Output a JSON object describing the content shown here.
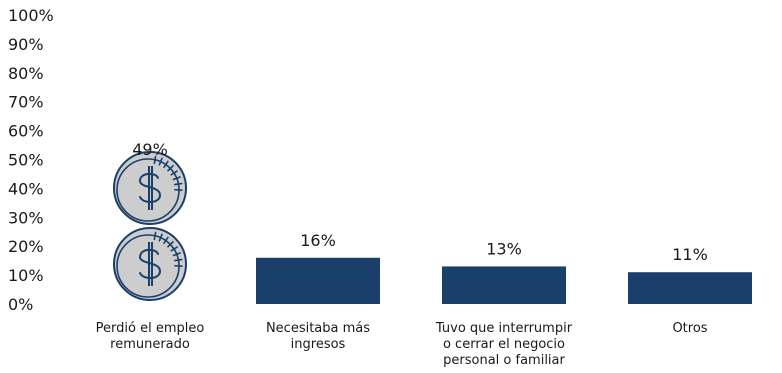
{
  "chart_data": {
    "type": "bar",
    "categories": [
      [
        "Perdió el empleo",
        "remunerado"
      ],
      [
        "Necesitaba más",
        "ingresos"
      ],
      [
        "Tuvo que interrumpir",
        "o cerrar el negocio",
        "personal o familiar"
      ],
      [
        "Otros"
      ]
    ],
    "values": [
      49,
      16,
      13,
      11
    ],
    "data_labels": [
      "49%",
      "16%",
      "13%",
      "11%"
    ],
    "ylim": [
      0,
      100
    ],
    "yticks": [
      "0%",
      "10%",
      "20%",
      "30%",
      "40%",
      "50%",
      "60%",
      "70%",
      "80%",
      "90%",
      "100%"
    ],
    "grid": false,
    "legend": "none",
    "first_bar_style": "coin-icons",
    "icon": "dollar-coin-icon",
    "colors": {
      "bar": "#1b3f6b",
      "coin_fill": "#cdcdcd",
      "coin_stroke": "#1b3f6b",
      "text": "#1a1a1a"
    }
  }
}
